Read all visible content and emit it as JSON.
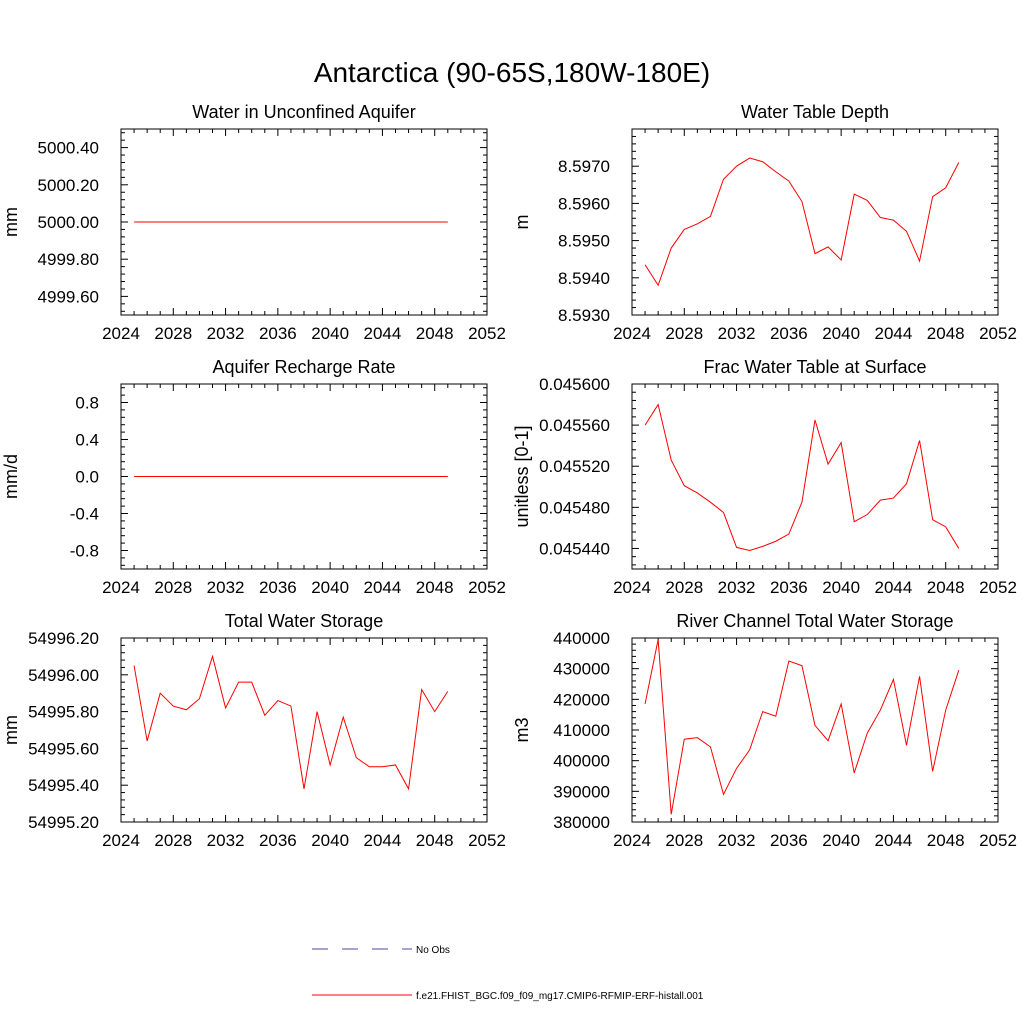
{
  "figure": {
    "title": "Antarctica (90-65S,180W-180E)"
  },
  "colors": {
    "model": "#ff0000",
    "obs": "#4a4aa8",
    "axis": "#000000"
  },
  "legend": {
    "items": [
      {
        "label": "No Obs",
        "style": "dashed",
        "color": "#4a4aa8"
      },
      {
        "label": "f.e21.FHIST_BGC.f09_f09_mg17.CMIP6-RFMIP-ERF-histall.001",
        "style": "solid",
        "color": "#ff0000"
      }
    ]
  },
  "chart_data": [
    {
      "type": "line",
      "title": "Water in Unconfined Aquifer",
      "xlabel": "",
      "ylabel": "mm",
      "xlim": [
        2024,
        2052
      ],
      "ylim": [
        4999.5,
        5000.5
      ],
      "xticks": [
        2024,
        2028,
        2032,
        2036,
        2040,
        2044,
        2048,
        2052
      ],
      "yticks": [
        4999.6,
        4999.8,
        5000.0,
        5000.2,
        5000.4
      ],
      "ytick_labels": [
        "4999.60",
        "4999.80",
        "5000.00",
        "5000.20",
        "5000.40"
      ],
      "x": [
        2025,
        2026,
        2027,
        2028,
        2029,
        2030,
        2031,
        2032,
        2033,
        2034,
        2035,
        2036,
        2037,
        2038,
        2039,
        2040,
        2041,
        2042,
        2043,
        2044,
        2045,
        2046,
        2047,
        2048,
        2049
      ],
      "series": [
        {
          "values": [
            5000.0,
            5000.0,
            5000.0,
            5000.0,
            5000.0,
            5000.0,
            5000.0,
            5000.0,
            5000.0,
            5000.0,
            5000.0,
            5000.0,
            5000.0,
            5000.0,
            5000.0,
            5000.0,
            5000.0,
            5000.0,
            5000.0,
            5000.0,
            5000.0,
            5000.0,
            5000.0,
            5000.0,
            5000.0
          ]
        }
      ]
    },
    {
      "type": "line",
      "title": "Water Table Depth",
      "xlabel": "",
      "ylabel": "m",
      "xlim": [
        2024,
        2052
      ],
      "ylim": [
        8.593,
        8.598
      ],
      "xticks": [
        2024,
        2028,
        2032,
        2036,
        2040,
        2044,
        2048,
        2052
      ],
      "yticks": [
        8.593,
        8.594,
        8.595,
        8.596,
        8.597
      ],
      "ytick_labels": [
        "8.5930",
        "8.5940",
        "8.5950",
        "8.5960",
        "8.5970"
      ],
      "x": [
        2025,
        2026,
        2027,
        2028,
        2029,
        2030,
        2031,
        2032,
        2033,
        2034,
        2035,
        2036,
        2037,
        2038,
        2039,
        2040,
        2041,
        2042,
        2043,
        2044,
        2045,
        2046,
        2047,
        2048,
        2049
      ],
      "series": [
        {
          "values": [
            8.59435,
            8.5938,
            8.5948,
            8.5953,
            8.59545,
            8.59565,
            8.59665,
            8.597,
            8.59722,
            8.59712,
            8.59685,
            8.5966,
            8.59605,
            8.59465,
            8.59483,
            8.59448,
            8.59625,
            8.59608,
            8.59562,
            8.59555,
            8.59525,
            8.59445,
            8.59618,
            8.59642,
            8.5971
          ]
        }
      ]
    },
    {
      "type": "line",
      "title": "Aquifer Recharge Rate",
      "xlabel": "",
      "ylabel": "mm/d",
      "xlim": [
        2024,
        2052
      ],
      "ylim": [
        -1.0,
        1.0
      ],
      "xticks": [
        2024,
        2028,
        2032,
        2036,
        2040,
        2044,
        2048,
        2052
      ],
      "yticks": [
        -0.8,
        -0.4,
        0.0,
        0.4,
        0.8
      ],
      "ytick_labels": [
        "-0.8",
        "-0.4",
        "0.0",
        "0.4",
        "0.8"
      ],
      "x": [
        2025,
        2026,
        2027,
        2028,
        2029,
        2030,
        2031,
        2032,
        2033,
        2034,
        2035,
        2036,
        2037,
        2038,
        2039,
        2040,
        2041,
        2042,
        2043,
        2044,
        2045,
        2046,
        2047,
        2048,
        2049
      ],
      "series": [
        {
          "values": [
            0,
            0,
            0,
            0,
            0,
            0,
            0,
            0,
            0,
            0,
            0,
            0,
            0,
            0,
            0,
            0,
            0,
            0,
            0,
            0,
            0,
            0,
            0,
            0,
            0
          ]
        }
      ]
    },
    {
      "type": "line",
      "title": "Frac Water Table at Surface",
      "xlabel": "",
      "ylabel": "unitless [0-1]",
      "xlim": [
        2024,
        2052
      ],
      "ylim": [
        0.04542,
        0.0456
      ],
      "xticks": [
        2024,
        2028,
        2032,
        2036,
        2040,
        2044,
        2048,
        2052
      ],
      "yticks": [
        0.04544,
        0.04548,
        0.04552,
        0.04556,
        0.0456
      ],
      "ytick_labels": [
        "0.045440",
        "0.045480",
        "0.045520",
        "0.045560",
        "0.045600"
      ],
      "x": [
        2025,
        2026,
        2027,
        2028,
        2029,
        2030,
        2031,
        2032,
        2033,
        2034,
        2035,
        2036,
        2037,
        2038,
        2039,
        2040,
        2041,
        2042,
        2043,
        2044,
        2045,
        2046,
        2047,
        2048,
        2049
      ],
      "series": [
        {
          "values": [
            0.04556,
            0.04558,
            0.045526,
            0.045501,
            0.045494,
            0.045485,
            0.045475,
            0.045441,
            0.045438,
            0.045442,
            0.045447,
            0.045454,
            0.045485,
            0.045565,
            0.045522,
            0.045543,
            0.045466,
            0.045473,
            0.045487,
            0.045489,
            0.045503,
            0.045545,
            0.045468,
            0.045461,
            0.04544
          ]
        }
      ]
    },
    {
      "type": "line",
      "title": "Total Water Storage",
      "xlabel": "",
      "ylabel": "mm",
      "xlim": [
        2024,
        2052
      ],
      "ylim": [
        54995.2,
        54996.2
      ],
      "xticks": [
        2024,
        2028,
        2032,
        2036,
        2040,
        2044,
        2048,
        2052
      ],
      "yticks": [
        54995.2,
        54995.4,
        54995.6,
        54995.8,
        54996.0,
        54996.2
      ],
      "ytick_labels": [
        "54995.20",
        "54995.40",
        "54995.60",
        "54995.80",
        "54996.00",
        "54996.20"
      ],
      "x": [
        2025,
        2026,
        2027,
        2028,
        2029,
        2030,
        2031,
        2032,
        2033,
        2034,
        2035,
        2036,
        2037,
        2038,
        2039,
        2040,
        2041,
        2042,
        2043,
        2044,
        2045,
        2046,
        2047,
        2048,
        2049
      ],
      "series": [
        {
          "values": [
            54996.05,
            54995.64,
            54995.9,
            54995.83,
            54995.81,
            54995.87,
            54996.1,
            54995.82,
            54995.96,
            54995.96,
            54995.78,
            54995.86,
            54995.83,
            54995.38,
            54995.8,
            54995.51,
            54995.77,
            54995.55,
            54995.5,
            54995.5,
            54995.51,
            54995.38,
            54995.92,
            54995.8,
            54995.91
          ]
        }
      ]
    },
    {
      "type": "line",
      "title": "River Channel Total Water Storage",
      "xlabel": "",
      "ylabel": "m3",
      "xlim": [
        2024,
        2052
      ],
      "ylim": [
        380000,
        440000
      ],
      "xticks": [
        2024,
        2028,
        2032,
        2036,
        2040,
        2044,
        2048,
        2052
      ],
      "yticks": [
        380000,
        390000,
        400000,
        410000,
        420000,
        430000,
        440000
      ],
      "ytick_labels": [
        "380000",
        "390000",
        "400000",
        "410000",
        "420000",
        "430000",
        "440000"
      ],
      "x": [
        2025,
        2026,
        2027,
        2028,
        2029,
        2030,
        2031,
        2032,
        2033,
        2034,
        2035,
        2036,
        2037,
        2038,
        2039,
        2040,
        2041,
        2042,
        2043,
        2044,
        2045,
        2046,
        2047,
        2048,
        2049
      ],
      "series": [
        {
          "values": [
            418500,
            439500,
            382500,
            407000,
            407500,
            404500,
            389000,
            397500,
            403500,
            416000,
            414500,
            432500,
            431000,
            411500,
            406500,
            418500,
            396000,
            409000,
            416500,
            426500,
            405000,
            427500,
            396500,
            416500,
            429500
          ]
        }
      ]
    }
  ]
}
